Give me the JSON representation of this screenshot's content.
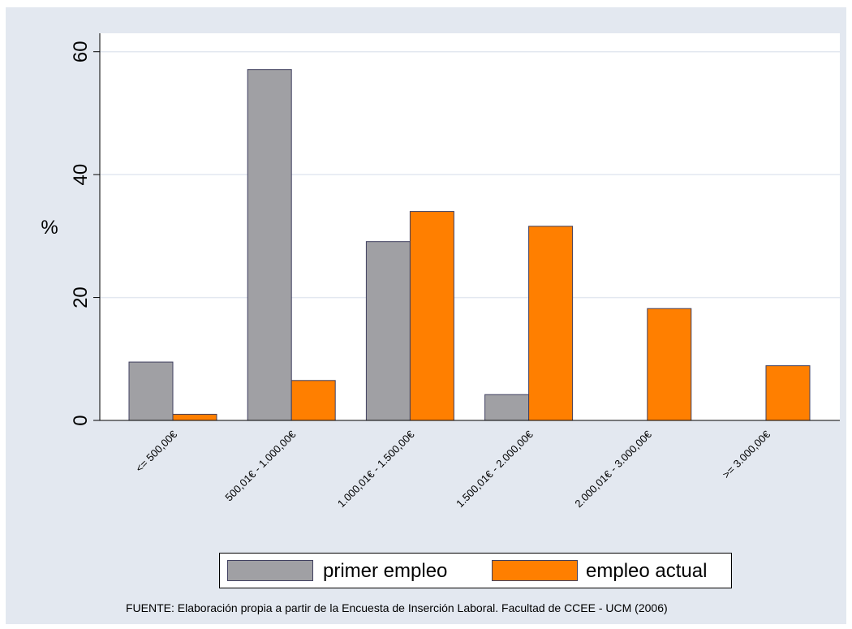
{
  "chart_data": {
    "type": "bar",
    "ylabel": "%",
    "ylim": [
      0,
      63
    ],
    "yticks": [
      0,
      20,
      40,
      60
    ],
    "categories": [
      "<= 500,00€",
      "500,01€ - 1.000,00€",
      "1.000,01€ - 1.500,00€",
      "1.500,01€ - 2.000,00€",
      "2.000,01€ - 3.000,00€",
      ">= 3.000,00€"
    ],
    "series": [
      {
        "name": "primer empleo",
        "color": "#a0a0a4",
        "values": [
          9.5,
          57.1,
          29.1,
          4.2,
          0,
          0
        ]
      },
      {
        "name": "empleo actual",
        "color": "#ff7f00",
        "values": [
          1.0,
          6.5,
          34.0,
          31.6,
          18.2,
          8.9
        ]
      }
    ],
    "grid": true,
    "legend": "bottom"
  },
  "source": "FUENTE: Elaboración propia a partir de la Encuesta de Inserción Laboral. Facultad de CCEE - UCM (2006)"
}
